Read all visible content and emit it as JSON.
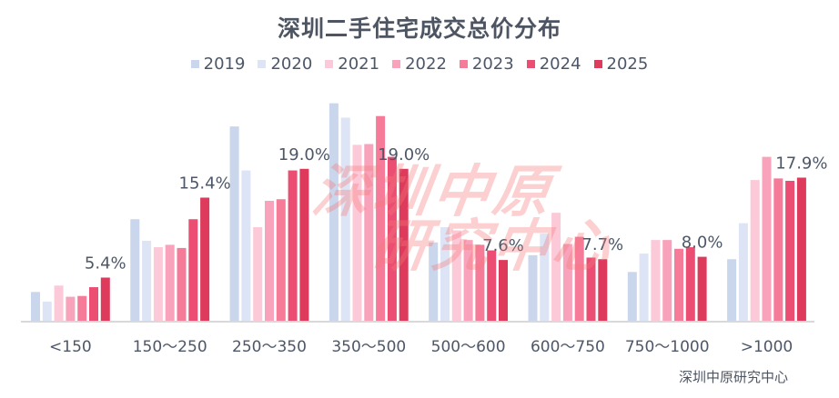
{
  "chart_data": {
    "type": "bar",
    "title": "深圳二手住宅成交总价分布",
    "xlabel": "",
    "ylabel": "",
    "ylim": [
      0,
      28
    ],
    "grid": false,
    "legend_position": "top-center",
    "categories": [
      "<150",
      "150～250",
      "250～350",
      "350～500",
      "500～600",
      "600～750",
      "750～1000",
      ">1000"
    ],
    "series": [
      {
        "name": "2019",
        "color": "#c9d6ec",
        "values": [
          3.6,
          12.7,
          24.3,
          27.2,
          9.8,
          8.2,
          6.1,
          7.7
        ]
      },
      {
        "name": "2020",
        "color": "#dde4f5",
        "values": [
          2.4,
          10.0,
          18.8,
          25.4,
          11.7,
          10.9,
          8.4,
          12.2
        ]
      },
      {
        "name": "2021",
        "color": "#fcc9d9",
        "values": [
          4.4,
          9.2,
          11.7,
          22.0,
          11.3,
          13.5,
          10.1,
          17.6
        ]
      },
      {
        "name": "2022",
        "color": "#f8a3bb",
        "values": [
          3.0,
          9.5,
          15.0,
          22.1,
          10.1,
          9.6,
          10.1,
          20.5
        ]
      },
      {
        "name": "2023",
        "color": "#f57b99",
        "values": [
          3.1,
          9.1,
          15.2,
          25.6,
          9.5,
          10.5,
          9.0,
          17.8
        ]
      },
      {
        "name": "2024",
        "color": "#ec4d73",
        "values": [
          4.2,
          12.7,
          18.8,
          20.5,
          8.8,
          7.9,
          9.2,
          17.5
        ]
      },
      {
        "name": "2025",
        "color": "#de3b5c",
        "values": [
          5.4,
          15.4,
          19.0,
          19.0,
          7.6,
          7.7,
          8.0,
          17.9
        ]
      }
    ],
    "data_labels": [
      "5.4%",
      "15.4%",
      "19.0%",
      "19.0%",
      "7.6%",
      "7.7%",
      "8.0%",
      "17.9%"
    ],
    "data_labels_series": "2025"
  },
  "watermark": {
    "line1": "深圳中原",
    "line2": "研究中心"
  },
  "source": "深圳中原研究中心"
}
